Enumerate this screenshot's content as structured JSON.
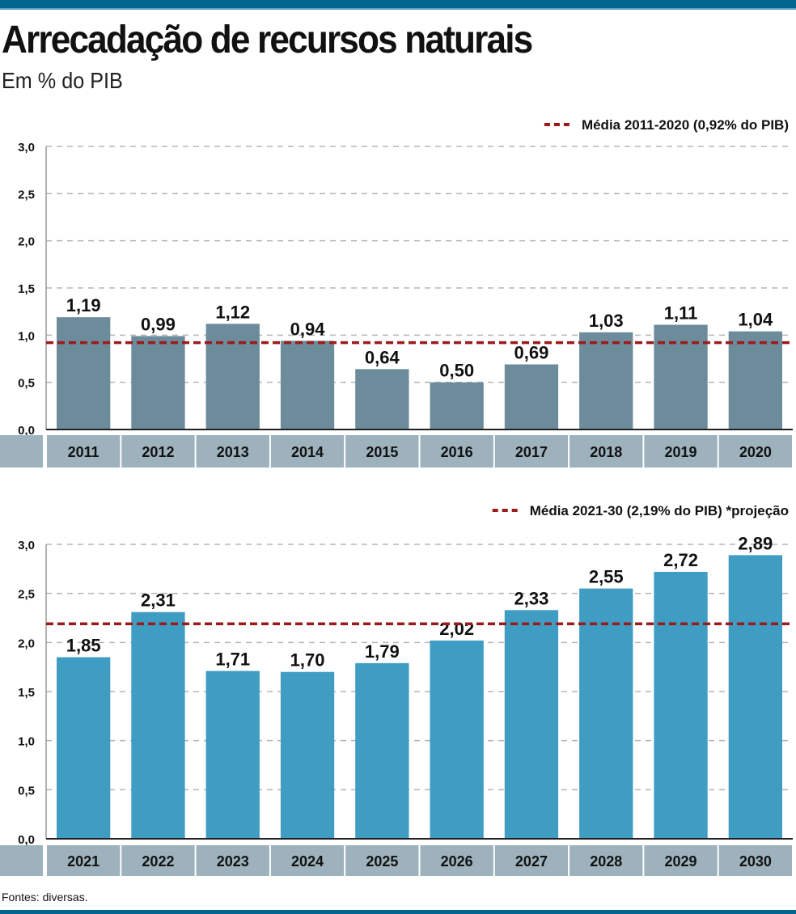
{
  "title": "Arrecadação de recursos naturais",
  "subtitle": "Em % do PIB",
  "source": "Fontes: diversas.",
  "colors": {
    "header_bar": "#04668f",
    "bars_top": "#6d8c9b",
    "bars_bottom": "#3f9cc2",
    "category_band": "#9db2bd",
    "average_line": "#9b1b1b",
    "grid": "#b5b5b5"
  },
  "chart_data": [
    {
      "type": "bar",
      "categories": [
        "2011",
        "2012",
        "2013",
        "2014",
        "2015",
        "2016",
        "2017",
        "2018",
        "2019",
        "2020"
      ],
      "values": [
        1.19,
        0.99,
        1.12,
        0.94,
        0.64,
        0.5,
        0.69,
        1.03,
        1.11,
        1.04
      ],
      "labels": [
        "1,19",
        "0,99",
        "1,12",
        "0,94",
        "0,64",
        "0,50",
        "0,69",
        "1,03",
        "1,11",
        "1,04"
      ],
      "yticks": [
        "0,0",
        "0,5",
        "1,0",
        "1,5",
        "2,0",
        "2,5",
        "3,0"
      ],
      "ylim": [
        0,
        3
      ],
      "grid": true,
      "average": 0.92,
      "legend": "Média 2011-2020 (0,92% do PIB)",
      "legend_placement": "top-right"
    },
    {
      "type": "bar",
      "categories": [
        "2021",
        "2022",
        "2023",
        "2024",
        "2025",
        "2026",
        "2027",
        "2028",
        "2029",
        "2030"
      ],
      "values": [
        1.85,
        2.31,
        1.71,
        1.7,
        1.79,
        2.02,
        2.33,
        2.55,
        2.72,
        2.89
      ],
      "labels": [
        "1,85",
        "2,31",
        "1,71",
        "1,70",
        "1,79",
        "2,02",
        "2,33",
        "2,55",
        "2,72",
        "2,89"
      ],
      "yticks": [
        "0,0",
        "0,5",
        "1,0",
        "1,5",
        "2,0",
        "2,5",
        "3,0"
      ],
      "ylim": [
        0,
        3
      ],
      "grid": true,
      "average": 2.19,
      "legend": "Média 2021-30 (2,19% do PIB) *projeção",
      "legend_placement": "top-right"
    }
  ]
}
